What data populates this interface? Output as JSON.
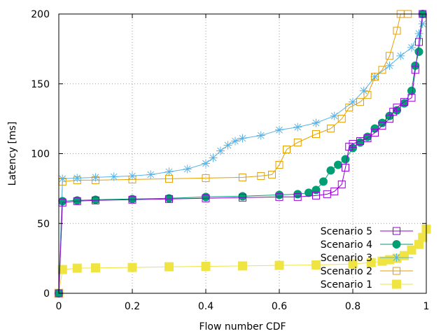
{
  "chart_data": {
    "type": "line",
    "title": "",
    "xlabel": "Flow number CDF",
    "ylabel": "Latency [ms]",
    "xlim": [
      0,
      1
    ],
    "ylim": [
      0,
      200
    ],
    "xticks": [
      "0",
      "0.2",
      "0.4",
      "0.6",
      "0.8",
      "1"
    ],
    "yticks": [
      "0",
      "50",
      "100",
      "150",
      "200"
    ],
    "grid": true,
    "legend_position": "bottom-right",
    "series": [
      {
        "name": "Scenario 5",
        "color": "#9400d3",
        "marker": "open-square",
        "x": [
          0,
          0.01,
          0.05,
          0.1,
          0.2,
          0.3,
          0.4,
          0.5,
          0.6,
          0.65,
          0.7,
          0.73,
          0.75,
          0.77,
          0.78,
          0.79,
          0.8,
          0.82,
          0.84,
          0.86,
          0.88,
          0.9,
          0.91,
          0.92,
          0.94,
          0.96,
          0.97,
          0.98,
          0.99
        ],
        "y": [
          0,
          65,
          66,
          66.5,
          67,
          67.5,
          68,
          68.5,
          69,
          69,
          70,
          71,
          73,
          78,
          90,
          105,
          107,
          109,
          111,
          115,
          120,
          125,
          130,
          133,
          137,
          140,
          160,
          180,
          200
        ]
      },
      {
        "name": "Scenario 4",
        "color": "#009e73",
        "marker": "filled-circle",
        "x": [
          0,
          0.01,
          0.05,
          0.1,
          0.2,
          0.3,
          0.4,
          0.5,
          0.6,
          0.65,
          0.68,
          0.7,
          0.72,
          0.74,
          0.76,
          0.78,
          0.8,
          0.82,
          0.84,
          0.86,
          0.88,
          0.9,
          0.92,
          0.94,
          0.96,
          0.97,
          0.98,
          0.99
        ],
        "y": [
          0,
          66,
          66.5,
          67,
          67.5,
          68,
          69,
          69.5,
          70.5,
          71,
          72,
          74,
          80,
          88,
          92,
          96,
          104,
          108,
          112,
          118,
          122,
          127,
          131,
          136,
          145,
          163,
          173,
          200
        ]
      },
      {
        "name": "Scenario 3",
        "color": "#56b4e9",
        "marker": "star",
        "x": [
          0,
          0.01,
          0.05,
          0.1,
          0.15,
          0.2,
          0.25,
          0.3,
          0.35,
          0.4,
          0.42,
          0.44,
          0.46,
          0.48,
          0.5,
          0.55,
          0.6,
          0.65,
          0.7,
          0.75,
          0.8,
          0.83,
          0.86,
          0.9,
          0.93,
          0.96,
          0.98,
          0.99
        ],
        "y": [
          0,
          82,
          82.5,
          83,
          83.5,
          84,
          85,
          87,
          89,
          93,
          97,
          102,
          106,
          109,
          111,
          113,
          117,
          119,
          122,
          127,
          137,
          145,
          155,
          163,
          170,
          176,
          186,
          193
        ]
      },
      {
        "name": "Scenario 2",
        "color": "#e69f00",
        "marker": "open-square",
        "x": [
          0,
          0.01,
          0.05,
          0.1,
          0.2,
          0.3,
          0.4,
          0.5,
          0.55,
          0.58,
          0.6,
          0.62,
          0.65,
          0.7,
          0.74,
          0.77,
          0.79,
          0.82,
          0.84,
          0.86,
          0.88,
          0.9,
          0.92,
          0.93,
          0.95
        ],
        "y": [
          0,
          80,
          81,
          81,
          81.5,
          82,
          82.5,
          83,
          84,
          85,
          92,
          103,
          108,
          114,
          118,
          125,
          133,
          137,
          142,
          155,
          160,
          170,
          188,
          200,
          200
        ]
      },
      {
        "name": "Scenario 1",
        "color": "#f0e442",
        "marker": "filled-square",
        "x": [
          0,
          0.01,
          0.05,
          0.1,
          0.2,
          0.3,
          0.4,
          0.5,
          0.6,
          0.7,
          0.8,
          0.85,
          0.88,
          0.9,
          0.92,
          0.94,
          0.96,
          0.98,
          0.99,
          1.0
        ],
        "y": [
          0,
          17,
          18,
          18.2,
          18.5,
          19,
          19.3,
          19.6,
          20,
          20.3,
          21,
          22,
          23,
          24,
          25,
          27,
          31,
          35,
          40,
          46
        ]
      }
    ]
  }
}
